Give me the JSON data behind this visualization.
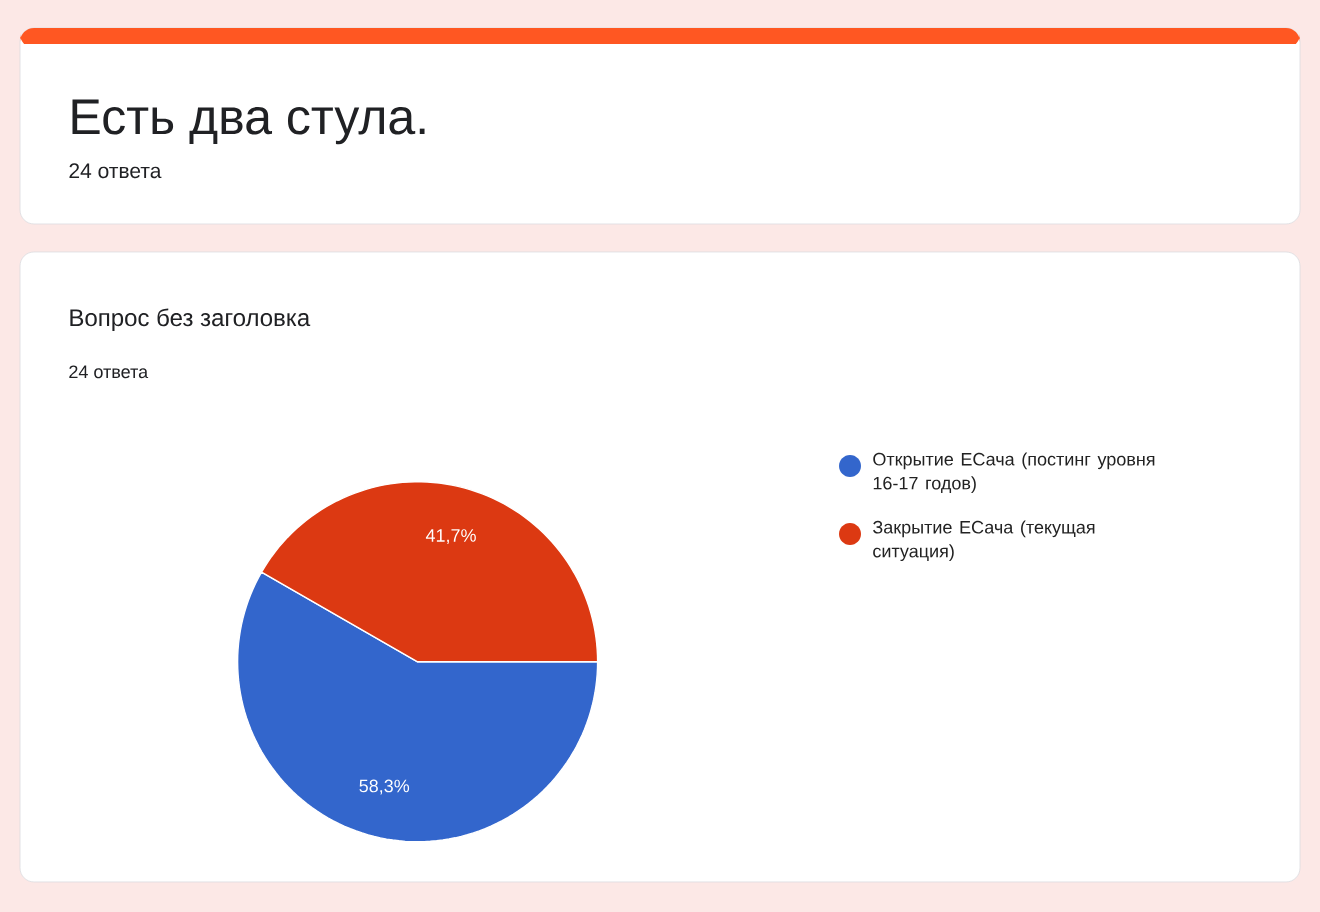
{
  "chart_data": {
    "type": "pie",
    "title": "Вопрос без заголовка",
    "subtitle": "24 ответа",
    "categories": [
      "Открытие ЕСача (постинг уровня 16-17 годов)",
      "Закрытие ЕСача (текущая ситуация)"
    ],
    "values": [
      58.3,
      41.7
    ],
    "colors": [
      "#3366cc",
      "#dc3912"
    ],
    "value_labels": [
      "58,3%",
      "41,7%"
    ],
    "legend": "right",
    "annotations": [
      "Есть два стула.",
      "24 ответа"
    ]
  }
}
